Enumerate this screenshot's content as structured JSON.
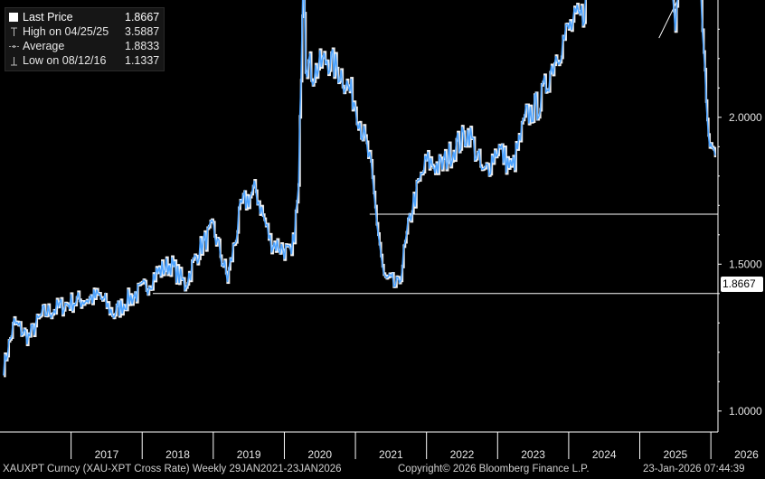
{
  "legend": {
    "items": [
      {
        "label": "Last Price",
        "value": "1.8667"
      },
      {
        "label": "High on 04/25/25",
        "value": "3.5887"
      },
      {
        "label": "Average",
        "value": "1.8833"
      },
      {
        "label": "Low on 08/12/16",
        "value": "1.1337"
      }
    ]
  },
  "footer": {
    "left": "XAUXPT Curncy (XAU-XPT Cross Rate) Weekly 29JAN2021-23JAN2026",
    "center": "Copyright© 2026 Bloomberg Finance L.P.",
    "right": "23-Jan-2026 07:44:39"
  },
  "last_price_label": "1.8667",
  "colors": {
    "background": "#000000",
    "series": "#4da3ff",
    "candle_body": "#ffffff",
    "lines": "#ffffff"
  },
  "chart_data": {
    "type": "line",
    "series": [
      {
        "name": "Last Price",
        "x": [
          "2016.05",
          "2016.2",
          "2016.4",
          "2016.6",
          "2016.8",
          "2017.0",
          "2017.2",
          "2017.4",
          "2017.6",
          "2017.8",
          "2018.0",
          "2018.2",
          "2018.4",
          "2018.6",
          "2018.8",
          "2019.0",
          "2019.2",
          "2019.4",
          "2019.6",
          "2019.8",
          "2020.0",
          "2020.1",
          "2020.2",
          "2020.27",
          "2020.3",
          "2020.4",
          "2020.6",
          "2020.8",
          "2021.0",
          "2021.2",
          "2021.4",
          "2021.6",
          "2021.8",
          "2022.0",
          "2022.2",
          "2022.4",
          "2022.6",
          "2022.8",
          "2023.0",
          "2023.2",
          "2023.4",
          "2023.6",
          "2023.8",
          "2024.0",
          "2024.2",
          "2024.4",
          "2024.6",
          "2024.8",
          "2025.0",
          "2025.2",
          "2025.3",
          "2025.32",
          "2025.4",
          "2025.5",
          "2025.6",
          "2025.7",
          "2025.8",
          "2025.9",
          "2025.95",
          "2026.0",
          "2026.06"
        ],
        "values": [
          1.15,
          1.3,
          1.25,
          1.33,
          1.35,
          1.37,
          1.38,
          1.39,
          1.33,
          1.38,
          1.41,
          1.47,
          1.5,
          1.43,
          1.55,
          1.62,
          1.45,
          1.7,
          1.75,
          1.58,
          1.55,
          1.52,
          1.75,
          2.6,
          2.2,
          2.15,
          2.2,
          2.15,
          2.05,
          1.85,
          1.45,
          1.42,
          1.7,
          1.85,
          1.83,
          1.9,
          1.95,
          1.8,
          1.9,
          1.82,
          2.0,
          2.05,
          2.2,
          2.3,
          2.35,
          2.6,
          2.75,
          2.85,
          3.05,
          3.35,
          3.55,
          3.45,
          2.6,
          2.35,
          2.45,
          2.55,
          2.6,
          2.25,
          1.95,
          1.9,
          1.87
        ]
      }
    ],
    "ylim": [
      0.9,
      3.75
    ],
    "yticks": [
      "1.0000",
      "1.5000",
      "2.0000",
      "2.5000",
      "3.0000",
      "3.5000"
    ],
    "xticks": [
      "2017",
      "2018",
      "2019",
      "2020",
      "2021",
      "2022",
      "2023",
      "2024",
      "2025",
      "2026"
    ],
    "annotations": {
      "support_lines": [
        1.4,
        1.67
      ],
      "channel": "upward channel 2025-2026"
    },
    "grid": false,
    "legend_position": "top-left"
  }
}
